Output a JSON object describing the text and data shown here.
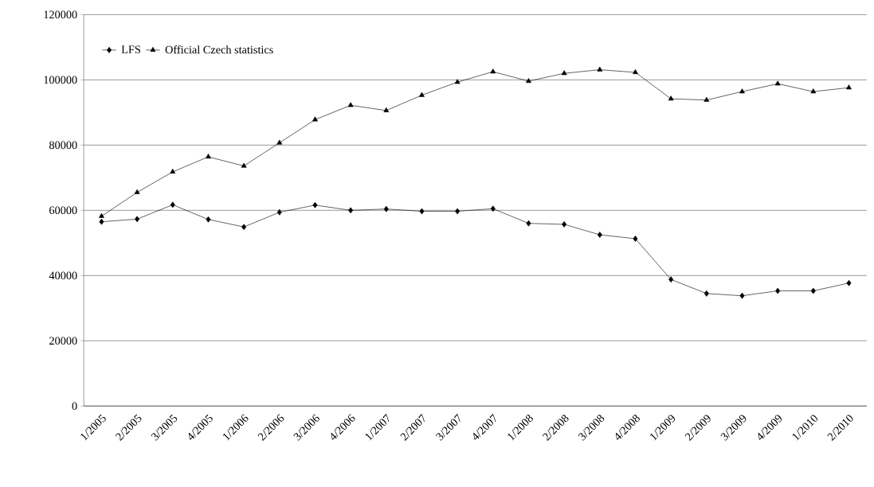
{
  "chart_data": {
    "type": "line",
    "categories": [
      "1/2005",
      "2/2005",
      "3/2005",
      "4/2005",
      "1/2006",
      "2/2006",
      "3/2006",
      "4/2006",
      "1/2007",
      "2/2007",
      "3/2007",
      "4/2007",
      "1/2008",
      "2/2008",
      "3/2008",
      "4/2008",
      "1/2009",
      "2/2009",
      "3/2009",
      "4/2009",
      "1/2010",
      "2/2010"
    ],
    "series": [
      {
        "name": "LFS",
        "color": "#000000",
        "marker": "diamond",
        "values": [
          56500,
          57300,
          61700,
          57200,
          54900,
          59400,
          61600,
          60000,
          60400,
          59700,
          59700,
          60500,
          56000,
          55700,
          52500,
          51300,
          38800,
          34500,
          33800,
          35300,
          35300,
          37700
        ]
      },
      {
        "name": "Official Czech statistics",
        "color": "#000000",
        "marker": "triangle",
        "values": [
          58200,
          65500,
          71800,
          76400,
          73600,
          80700,
          87800,
          92200,
          90600,
          95300,
          99300,
          102500,
          99600,
          102000,
          103100,
          102300,
          94200,
          93800,
          96400,
          98800,
          96400,
          97600
        ]
      }
    ],
    "ylim": [
      0,
      120000
    ],
    "yticks": [
      0,
      20000,
      40000,
      60000,
      80000,
      100000,
      120000
    ],
    "grid": "y",
    "legend": "top left",
    "line_style": "solid"
  }
}
